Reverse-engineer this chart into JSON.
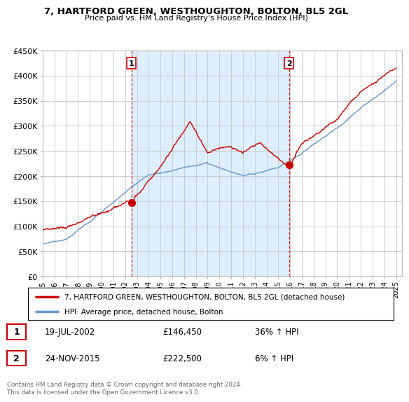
{
  "title": "7, HARTFORD GREEN, WESTHOUGHTON, BOLTON, BL5 2GL",
  "subtitle": "Price paid vs. HM Land Registry's House Price Index (HPI)",
  "ylabel_ticks": [
    "£0",
    "£50K",
    "£100K",
    "£150K",
    "£200K",
    "£250K",
    "£300K",
    "£350K",
    "£400K",
    "£450K"
  ],
  "ytick_values": [
    0,
    50000,
    100000,
    150000,
    200000,
    250000,
    300000,
    350000,
    400000,
    450000
  ],
  "ylim": [
    0,
    450000
  ],
  "xlim_start": 1995.0,
  "xlim_end": 2025.5,
  "transaction1": {
    "date_num": 2002.54,
    "price": 146450,
    "label": "1",
    "info": "19-JUL-2002",
    "amount": "£146,450",
    "hpi": "36% ↑ HPI"
  },
  "transaction2": {
    "date_num": 2015.9,
    "price": 222500,
    "label": "2",
    "info": "24-NOV-2015",
    "amount": "£222,500",
    "hpi": "6% ↑ HPI"
  },
  "legend_line1": "7, HARTFORD GREEN, WESTHOUGHTON, BOLTON, BL5 2GL (detached house)",
  "legend_line2": "HPI: Average price, detached house, Bolton",
  "footer": "Contains HM Land Registry data © Crown copyright and database right 2024.\nThis data is licensed under the Open Government Licence v3.0.",
  "line_color_price": "#cc0000",
  "line_color_hpi": "#6699cc",
  "shade_color": "#ddeeff",
  "dashed_vline_color": "#cc0000",
  "background_color": "#ffffff",
  "plot_bg_color": "#ffffff",
  "grid_color": "#cccccc",
  "xtick_years": [
    1995,
    1996,
    1997,
    1998,
    1999,
    2000,
    2001,
    2002,
    2003,
    2004,
    2005,
    2006,
    2007,
    2008,
    2009,
    2010,
    2011,
    2012,
    2013,
    2014,
    2015,
    2016,
    2017,
    2018,
    2019,
    2020,
    2021,
    2022,
    2023,
    2024,
    2025
  ]
}
